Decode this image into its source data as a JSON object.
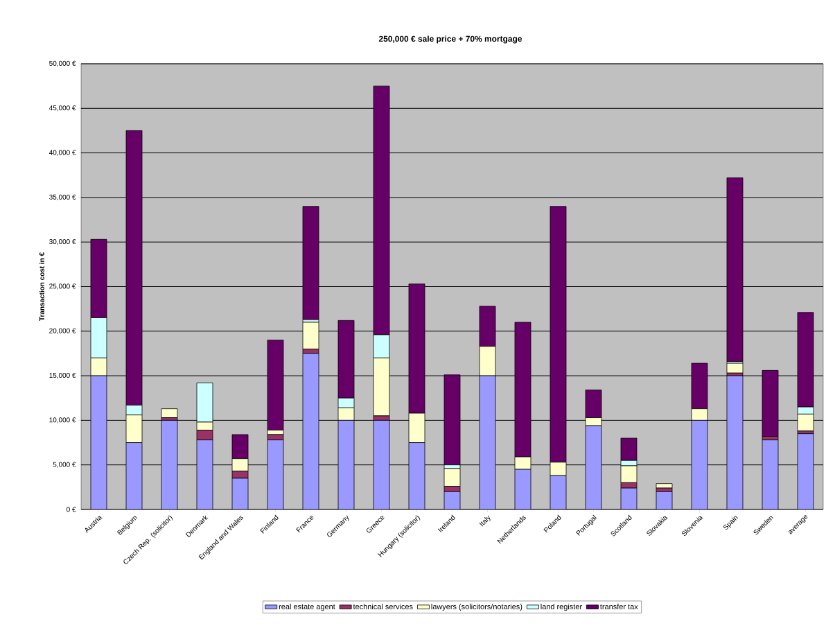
{
  "chart_data": {
    "type": "bar",
    "stacked": true,
    "title": "250,000 € sale price + 70% mortgage",
    "ylabel": "Transaction cost in €",
    "categories": [
      "Austria",
      "Belgium",
      "Czech Rep. (solicitor)",
      "Denmark",
      "England and Wales",
      "Finland",
      "France",
      "Germany",
      "Greece",
      "Hungary (solicitor)",
      "Ireland",
      "Italy",
      "Netherlands",
      "Poland",
      "Portugal",
      "Scotland",
      "Slovakia",
      "Slovenia",
      "Spain",
      "Sweden",
      "average"
    ],
    "series": [
      {
        "name": "real estate agent",
        "color": "#9999ff",
        "values": [
          15000,
          7500,
          10000,
          7800,
          3500,
          7800,
          17500,
          10000,
          10000,
          7500,
          2000,
          15000,
          4500,
          3800,
          9400,
          2400,
          2000,
          10000,
          15000,
          7800,
          8500
        ]
      },
      {
        "name": "technical services",
        "color": "#993366",
        "values": [
          0,
          0,
          300,
          1100,
          800,
          600,
          500,
          0,
          500,
          0,
          600,
          0,
          0,
          0,
          0,
          600,
          400,
          0,
          300,
          400,
          300
        ]
      },
      {
        "name": "lawyers (solicitors/notaries)",
        "color": "#ffffcc",
        "values": [
          2000,
          3100,
          1000,
          900,
          1400,
          500,
          3000,
          1400,
          6500,
          3300,
          2000,
          3300,
          1400,
          1500,
          900,
          1900,
          500,
          1300,
          1100,
          0,
          1900
        ]
      },
      {
        "name": "land register",
        "color": "#ccffff",
        "values": [
          4500,
          1100,
          0,
          4400,
          0,
          0,
          300,
          1100,
          2600,
          0,
          400,
          0,
          0,
          0,
          0,
          600,
          0,
          0,
          200,
          0,
          800
        ]
      },
      {
        "name": "transfer tax",
        "color": "#660066",
        "values": [
          8800,
          30800,
          0,
          0,
          2700,
          10100,
          12700,
          8700,
          27900,
          14500,
          10100,
          4500,
          15100,
          28700,
          3100,
          2500,
          0,
          5100,
          20600,
          7400,
          10600
        ]
      }
    ],
    "ylim": [
      0,
      50000
    ],
    "yticks": [
      {
        "value": 0,
        "label": "0 €"
      },
      {
        "value": 5000,
        "label": "5,000 €"
      },
      {
        "value": 10000,
        "label": "10,000 €"
      },
      {
        "value": 15000,
        "label": "15,000 €"
      },
      {
        "value": 20000,
        "label": "20,000 €"
      },
      {
        "value": 25000,
        "label": "25,000 €"
      },
      {
        "value": 30000,
        "label": "30,000 €"
      },
      {
        "value": 35000,
        "label": "35,000 €"
      },
      {
        "value": 40000,
        "label": "40,000 €"
      },
      {
        "value": 45000,
        "label": "45,000 €"
      },
      {
        "value": 50000,
        "label": "50,000 €"
      }
    ],
    "grid": "y",
    "legend": "bottom"
  }
}
